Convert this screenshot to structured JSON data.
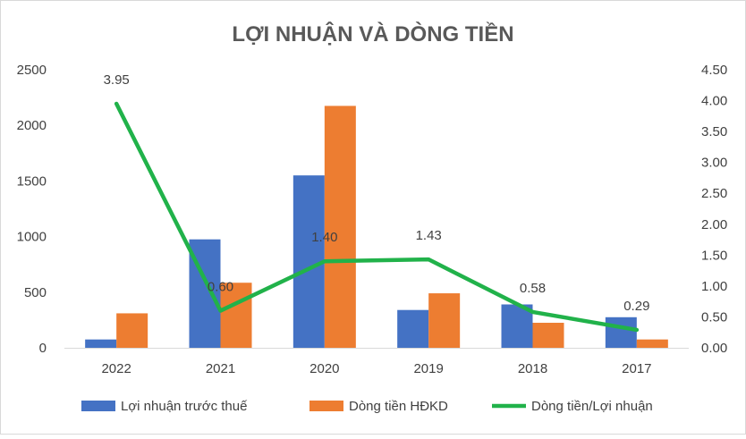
{
  "chart_data": {
    "type": "bar",
    "title": "LỢI NHUẬN VÀ DÒNG TIỀN",
    "categories": [
      "2022",
      "2021",
      "2020",
      "2019",
      "2018",
      "2017"
    ],
    "series": [
      {
        "name": "Lợi nhuận trước thuế",
        "kind": "bar",
        "axis": "left",
        "color": "#4472C4",
        "values": [
          75,
          975,
          1550,
          340,
          390,
          275
        ]
      },
      {
        "name": "Dòng tiền HĐKD",
        "kind": "bar",
        "axis": "left",
        "color": "#ED7D31",
        "values": [
          310,
          585,
          2175,
          490,
          225,
          75
        ]
      },
      {
        "name": "Dòng tiền/Lợi nhuận",
        "kind": "line",
        "axis": "right",
        "color": "#21B24A",
        "values": [
          3.95,
          0.6,
          1.4,
          1.43,
          0.58,
          0.29
        ],
        "labels": [
          "3.95",
          "0.60",
          "1.40",
          "1.43",
          "0.58",
          "0.29"
        ]
      }
    ],
    "y_left": {
      "min": 0,
      "max": 2500,
      "ticks": [
        "0",
        "500",
        "1000",
        "1500",
        "2000",
        "2500"
      ]
    },
    "y_right": {
      "min": 0,
      "max": 4.5,
      "ticks": [
        "0.00",
        "0.50",
        "1.00",
        "1.50",
        "2.00",
        "2.50",
        "3.00",
        "3.50",
        "4.00",
        "4.50"
      ]
    },
    "legend_position": "bottom",
    "grid": false
  }
}
